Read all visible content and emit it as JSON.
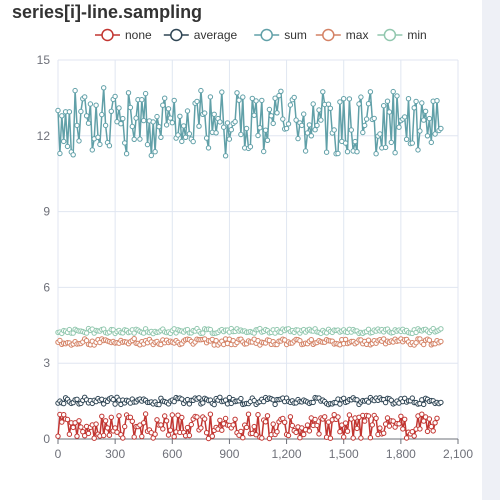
{
  "page": {
    "title": "series[i]-line.sampling"
  },
  "chart_data": {
    "type": "line",
    "title": "series[i]-line.sampling",
    "xlabel": "",
    "ylabel": "",
    "xlim": [
      0,
      2100
    ],
    "ylim": [
      0,
      15
    ],
    "x_ticks": [
      "0",
      "300",
      "600",
      "900",
      "1,200",
      "1,500",
      "1,800",
      "2,100"
    ],
    "y_ticks": [
      "0",
      "3",
      "6",
      "9",
      "12",
      "15"
    ],
    "grid": true,
    "legend_position": "top",
    "point_count": 200,
    "x_step": 10,
    "series": [
      {
        "name": "none",
        "color": "#c23531",
        "sampling": "none",
        "values": [
          0.11,
          0.97,
          0.67,
          0.96,
          0.79,
          0.77,
          0.19,
          0.64,
          0.46,
          0.64,
          0.11,
          0.72,
          0.47,
          0.29,
          0.13,
          0.5,
          0.22,
          0.46,
          0.56,
          0.03,
          0.59,
          0.19,
          0.12,
          0.9,
          0.14,
          0.72,
          0.44,
          0.15,
          0.86,
          0.32,
          0.44,
          0.27,
          0.92,
          0.17,
          0.04,
          0.49,
          0.95,
          0.85,
          0.86,
          0.7,
          0.08,
          0.49,
          0.49,
          0.55,
          0.1,
          0.64,
          0.99,
          0.31,
          0.36,
          0.25,
          0.04,
          0.19,
          0.76,
          0.55,
          0.56,
          0.4,
          0.91,
          0.72,
          0.16,
          0.35,
          0.95,
          0.09,
          0.28,
          0.94,
          0.26,
          0.85,
          0.26,
          0.13,
          0.45,
          0.14,
          0.57,
          0.79,
          0.89,
          0.87,
          0.36,
          0.44,
          0.87,
          0.79,
          0.25,
          0.02,
          0.98,
          0.11,
          0.34,
          0.46,
          0.39,
          0.74,
          0.35,
          0.6,
          0.81,
          0.55,
          0.54,
          0.44,
          0.56,
          0.78,
          0.25,
          0.15,
          0.3,
          0.05,
          0.55,
          0.46,
          0.98,
          0.21,
          0.22,
          0.49,
          0.17,
          0.96,
          0.07,
          0.04,
          0.75,
          0.68,
          0.92,
          0.02,
          0.17,
          0.59,
          0.18,
          0.29,
          0.68,
          0.78,
          0.81,
          0.66,
          0.18,
          0.14,
          0.88,
          0.53,
          0.33,
          0.26,
          0.48,
          0.05,
          0.44,
          0.18,
          0.37,
          0.55,
          0.32,
          0.83,
          0.54,
          0.77,
          0.54,
          0.2,
          0.83,
          0.79,
          0.88,
          0.07,
          0.67,
          0.03,
          0.76,
          0.96,
          0.78,
          0.87,
          0.29,
          0.55,
          0.08,
          0.63,
          0.31,
          0.95,
          0.79,
          0.04,
          0.83,
          0.42,
          0.86,
          0.04,
          0.93,
          0.71,
          0.93,
          0.91,
          0.05,
          0.56,
          0.93,
          0.82,
          0.18,
          0.43,
          0.2,
          0.23,
          0.59,
          0.83,
          0.51,
          0.72,
          0.71,
          0.47,
          0.61,
          0.6,
          0.9,
          0.4,
          0.78,
          0.04,
          0.27,
          0.2,
          0.29,
          0.12,
          0.39,
          0.91,
          0.4,
          0.98,
          0.71,
          0.87,
          0.3,
          0.79,
          0.49,
          0.32,
          0.64,
          0.82
        ]
      },
      {
        "name": "average",
        "color": "#2f4554",
        "sampling": "average",
        "values": [
          1.42,
          1.5,
          1.43,
          1.4,
          1.63,
          1.57,
          1.47,
          1.41,
          1.44,
          1.55,
          1.57,
          1.39,
          1.41,
          1.53,
          1.65,
          1.55,
          1.43,
          1.52,
          1.41,
          1.53,
          1.48,
          1.6,
          1.52,
          1.57,
          1.39,
          1.53,
          1.49,
          1.59,
          1.63,
          1.56,
          1.38,
          1.65,
          1.54,
          1.37,
          1.54,
          1.43,
          1.53,
          1.5,
          1.42,
          1.58,
          1.46,
          1.47,
          1.55,
          1.58,
          1.5,
          1.58,
          1.53,
          1.45,
          1.45,
          1.47,
          1.39,
          1.47,
          1.37,
          1.36,
          1.61,
          1.5,
          1.48,
          1.45,
          1.39,
          1.5,
          1.54,
          1.48,
          1.64,
          1.6,
          1.62,
          1.58,
          1.41,
          1.51,
          1.56,
          1.39,
          1.53,
          1.53,
          1.62,
          1.58,
          1.63,
          1.39,
          1.43,
          1.61,
          1.57,
          1.52,
          1.54,
          1.41,
          1.36,
          1.6,
          1.54,
          1.65,
          1.48,
          1.5,
          1.54,
          1.39,
          1.64,
          1.41,
          1.56,
          1.48,
          1.5,
          1.51,
          1.6,
          1.37,
          1.39,
          1.41,
          1.4,
          1.48,
          1.62,
          1.52,
          1.37,
          1.44,
          1.48,
          1.57,
          1.48,
          1.64,
          1.57,
          1.62,
          1.59,
          1.55,
          1.37,
          1.56,
          1.56,
          1.58,
          1.62,
          1.48,
          1.62,
          1.49,
          1.45,
          1.51,
          1.42,
          1.43,
          1.56,
          1.48,
          1.47,
          1.54,
          1.5,
          1.46,
          1.41,
          1.45,
          1.45,
          1.64,
          1.62,
          1.62,
          1.5,
          1.54,
          1.48,
          1.4,
          1.36,
          1.4,
          1.39,
          1.44,
          1.44,
          1.58,
          1.38,
          1.56,
          1.61,
          1.45,
          1.48,
          1.56,
          1.55,
          1.63,
          1.56,
          1.55,
          1.37,
          1.46,
          1.52,
          1.5,
          1.53,
          1.46,
          1.64,
          1.55,
          1.52,
          1.62,
          1.53,
          1.63,
          1.56,
          1.56,
          1.44,
          1.61,
          1.59,
          1.53,
          1.39,
          1.43,
          1.5,
          1.42,
          1.59,
          1.48,
          1.61,
          1.46,
          1.51,
          1.51,
          1.62,
          1.44,
          1.44,
          1.38,
          1.4,
          1.55,
          1.37,
          1.61,
          1.57,
          1.49,
          1.52,
          1.51,
          1.41,
          1.45,
          1.4,
          1.45
        ]
      },
      {
        "name": "sum",
        "color": "#61a0a8",
        "sampling": "sum",
        "values": [
          13.0,
          11.3,
          12.79,
          11.78,
          12.95,
          11.58,
          12.95,
          11.36,
          11.25,
          13.79,
          12.41,
          11.8,
          12.96,
          13.47,
          13.54,
          12.79,
          12.5,
          13.26,
          11.44,
          11.88,
          13.21,
          11.94,
          11.66,
          12.84,
          13.9,
          12.41,
          11.73,
          11.61,
          12.97,
          13.44,
          13.56,
          12.56,
          13.1,
          12.48,
          12.68,
          11.72,
          11.29,
          13.7,
          13.12,
          12.37,
          11.86,
          12.7,
          13.43,
          11.87,
          13.43,
          12.6,
          13.67,
          11.65,
          12.59,
          11.22,
          12.55,
          11.37,
          12.76,
          12.36,
          11.94,
          13.21,
          13.49,
          12.43,
          13.07,
          12.7,
          12.52,
          13.4,
          11.91,
          12.03,
          12.77,
          11.78,
          12.39,
          11.94,
          12.98,
          12.08,
          11.87,
          11.77,
          13.29,
          13.36,
          12.38,
          13.79,
          12.85,
          12.9,
          11.91,
          11.52,
          13.54,
          12.14,
          12.85,
          12.12,
          12.68,
          12.55,
          13.73,
          12.34,
          11.21,
          12.51,
          11.87,
          12.24,
          12.49,
          12.56,
          13.7,
          13.41,
          12.05,
          13.53,
          11.52,
          12.29,
          11.5,
          11.57,
          13.48,
          12.81,
          13.38,
          12.01,
          12.32,
          13.4,
          11.38,
          12.22,
          11.82,
          13.04,
          12.79,
          12.49,
          13.49,
          12.91,
          13.59,
          13.76,
          12.66,
          12.27,
          12.29,
          12.47,
          13.22,
          13.43,
          13.52,
          12.62,
          11.89,
          12.51,
          12.41,
          12.86,
          11.4,
          12.11,
          12.43,
          12.0,
          13.26,
          12.24,
          12.41,
          13.02,
          12.62,
          13.74,
          13.24,
          11.35,
          13.25,
          13.09,
          12.11,
          12.23,
          11.29,
          11.3,
          13.34,
          11.78,
          13.47,
          11.71,
          11.37,
          13.46,
          12.23,
          11.4,
          11.77,
          11.37,
          13.26,
          13.53,
          12.13,
          12.41,
          12.66,
          13.27,
          13.74,
          12.65,
          12.69,
          11.29,
          11.99,
          12.07,
          11.52,
          13.19,
          11.54,
          13.37,
          12.94,
          11.74,
          13.75,
          11.33,
          13.58,
          12.34,
          12.6,
          12.66,
          12.75,
          11.86,
          13.47,
          11.69,
          11.71,
          13.11,
          13.36,
          11.44,
          12.19,
          13.3,
          12.62,
          12.97,
          12.0,
          12.68,
          11.74,
          13.37,
          12.07,
          13.39,
          12.21,
          12.29
        ]
      },
      {
        "name": "max",
        "color": "#d48265",
        "sampling": "max",
        "values": [
          3.83,
          3.9,
          3.75,
          3.79,
          3.77,
          3.81,
          3.8,
          3.72,
          3.76,
          3.85,
          3.76,
          3.77,
          3.78,
          3.84,
          3.96,
          3.89,
          3.75,
          3.73,
          3.87,
          3.72,
          3.83,
          3.93,
          3.82,
          3.96,
          3.9,
          3.92,
          3.88,
          3.85,
          3.82,
          3.86,
          3.8,
          3.81,
          3.79,
          3.9,
          3.83,
          3.85,
          3.83,
          3.77,
          3.85,
          3.9,
          3.97,
          3.79,
          3.78,
          3.73,
          3.85,
          3.76,
          3.89,
          3.81,
          3.94,
          3.84,
          3.74,
          3.83,
          3.86,
          3.76,
          3.74,
          3.92,
          3.81,
          3.91,
          3.82,
          3.87,
          3.83,
          3.8,
          3.89,
          3.82,
          3.74,
          3.77,
          3.88,
          3.93,
          3.95,
          3.93,
          3.86,
          3.76,
          3.84,
          3.95,
          3.93,
          3.93,
          3.94,
          3.96,
          3.81,
          3.89,
          3.88,
          3.94,
          3.72,
          3.89,
          3.72,
          3.8,
          3.87,
          3.74,
          3.96,
          3.78,
          3.95,
          3.74,
          3.89,
          3.74,
          3.82,
          3.94,
          3.95,
          3.84,
          3.76,
          3.77,
          3.88,
          3.84,
          3.84,
          3.95,
          3.79,
          3.89,
          3.72,
          3.83,
          3.81,
          3.8,
          3.92,
          3.9,
          3.75,
          3.85,
          3.74,
          3.74,
          3.87,
          3.88,
          3.95,
          3.92,
          3.74,
          3.84,
          3.79,
          3.8,
          3.88,
          3.94,
          3.93,
          3.89,
          3.74,
          3.76,
          3.79,
          3.77,
          3.87,
          3.93,
          3.75,
          3.8,
          3.82,
          3.89,
          3.85,
          3.83,
          3.83,
          3.93,
          3.89,
          3.88,
          3.87,
          3.76,
          3.78,
          3.76,
          3.73,
          3.93,
          3.77,
          3.94,
          3.78,
          3.81,
          3.86,
          3.86,
          3.77,
          3.83,
          3.92,
          3.92,
          3.77,
          3.86,
          3.75,
          3.91,
          3.73,
          3.78,
          3.89,
          3.79,
          3.89,
          3.93,
          3.87,
          3.96,
          3.77,
          3.87,
          3.83,
          3.88,
          3.84,
          3.95,
          3.87,
          3.89,
          3.96,
          3.85,
          3.93,
          3.94,
          3.84,
          3.74,
          3.81,
          3.72,
          3.81,
          3.96,
          3.96,
          3.82,
          3.74,
          3.91,
          3.95,
          3.91,
          3.73,
          3.77,
          3.77,
          3.89,
          3.81,
          3.86
        ]
      },
      {
        "name": "min",
        "color": "#91c7ae",
        "sampling": "min",
        "values": [
          4.22,
          4.23,
          4.18,
          4.29,
          4.27,
          4.22,
          4.33,
          4.19,
          4.19,
          4.34,
          4.3,
          4.27,
          4.27,
          4.25,
          4.22,
          4.19,
          4.37,
          4.3,
          4.35,
          4.19,
          4.3,
          4.28,
          4.27,
          4.33,
          4.35,
          4.21,
          4.19,
          4.23,
          4.33,
          4.32,
          4.18,
          4.25,
          4.3,
          4.21,
          4.2,
          4.32,
          4.3,
          4.21,
          4.24,
          4.32,
          4.19,
          4.34,
          4.31,
          4.26,
          4.22,
          4.19,
          4.36,
          4.24,
          4.21,
          4.26,
          4.17,
          4.26,
          4.22,
          4.24,
          4.29,
          4.35,
          4.24,
          4.21,
          4.24,
          4.18,
          4.29,
          4.36,
          4.2,
          4.32,
          4.29,
          4.27,
          4.23,
          4.31,
          4.33,
          4.2,
          4.2,
          4.29,
          4.27,
          4.37,
          4.26,
          4.18,
          4.19,
          4.36,
          4.33,
          4.35,
          4.33,
          4.19,
          4.18,
          4.19,
          4.22,
          4.29,
          4.33,
          4.25,
          4.31,
          4.31,
          4.23,
          4.37,
          4.25,
          4.26,
          4.36,
          4.27,
          4.31,
          4.27,
          4.28,
          4.22,
          4.23,
          4.25,
          4.22,
          4.19,
          4.32,
          4.33,
          4.37,
          4.23,
          4.26,
          4.33,
          4.29,
          4.2,
          4.22,
          4.32,
          4.19,
          4.33,
          4.24,
          4.22,
          4.35,
          4.29,
          4.35,
          4.36,
          4.25,
          4.29,
          4.22,
          4.32,
          4.31,
          4.19,
          4.29,
          4.33,
          4.23,
          4.31,
          4.34,
          4.28,
          4.27,
          4.36,
          4.24,
          4.22,
          4.18,
          4.3,
          4.23,
          4.2,
          4.34,
          4.26,
          4.22,
          4.31,
          4.3,
          4.31,
          4.23,
          4.27,
          4.32,
          4.24,
          4.22,
          4.34,
          4.23,
          4.33,
          4.28,
          4.28,
          4.18,
          4.22,
          4.18,
          4.23,
          4.25,
          4.34,
          4.2,
          4.22,
          4.31,
          4.27,
          4.35,
          4.28,
          4.33,
          4.24,
          4.33,
          4.35,
          4.24,
          4.2,
          4.22,
          4.32,
          4.27,
          4.31,
          4.26,
          4.34,
          4.25,
          4.3,
          4.21,
          4.19,
          4.18,
          4.32,
          4.22,
          4.36,
          4.3,
          4.28,
          4.33,
          4.34,
          4.27,
          4.21,
          4.3,
          4.37,
          4.24,
          4.27,
          4.31,
          4.36
        ]
      }
    ]
  }
}
